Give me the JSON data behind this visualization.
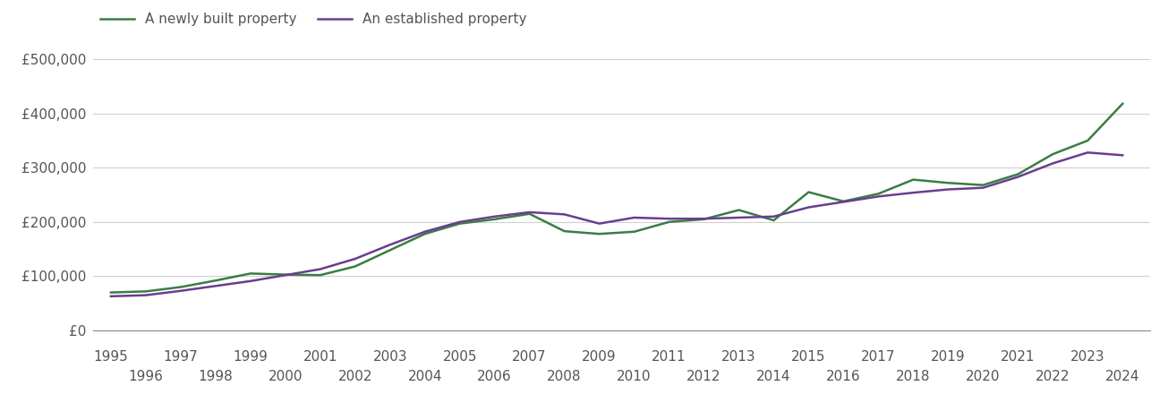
{
  "newly_built": {
    "years": [
      1995,
      1996,
      1997,
      1998,
      1999,
      2000,
      2001,
      2002,
      2003,
      2004,
      2005,
      2006,
      2007,
      2008,
      2009,
      2010,
      2011,
      2012,
      2013,
      2014,
      2015,
      2016,
      2017,
      2018,
      2019,
      2020,
      2021,
      2022,
      2023,
      2024
    ],
    "values": [
      70000,
      72000,
      80000,
      92000,
      105000,
      103000,
      102000,
      118000,
      148000,
      178000,
      197000,
      205000,
      215000,
      183000,
      178000,
      182000,
      200000,
      205000,
      222000,
      203000,
      255000,
      238000,
      252000,
      278000,
      272000,
      268000,
      288000,
      325000,
      350000,
      418000
    ]
  },
  "established": {
    "years": [
      1995,
      1996,
      1997,
      1998,
      1999,
      2000,
      2001,
      2002,
      2003,
      2004,
      2005,
      2006,
      2007,
      2008,
      2009,
      2010,
      2011,
      2012,
      2013,
      2014,
      2015,
      2016,
      2017,
      2018,
      2019,
      2020,
      2021,
      2022,
      2023,
      2024
    ],
    "values": [
      63000,
      65000,
      73000,
      82000,
      91000,
      102000,
      113000,
      132000,
      158000,
      182000,
      200000,
      210000,
      218000,
      214000,
      197000,
      208000,
      206000,
      206000,
      208000,
      210000,
      227000,
      237000,
      247000,
      254000,
      260000,
      263000,
      283000,
      308000,
      328000,
      323000
    ]
  },
  "newly_color": "#3a7d44",
  "established_color": "#6a3d8f",
  "line_width": 1.8,
  "legend_labels": [
    "A newly built property",
    "An established property"
  ],
  "ylim": [
    0,
    520000
  ],
  "yticks": [
    0,
    100000,
    200000,
    300000,
    400000,
    500000
  ],
  "ytick_labels": [
    "£0",
    "£100,000",
    "£200,000",
    "£300,000",
    "£400,000",
    "£500,000"
  ],
  "xticks_top": [
    1995,
    1997,
    1999,
    2001,
    2003,
    2005,
    2007,
    2009,
    2011,
    2013,
    2015,
    2017,
    2019,
    2021,
    2023
  ],
  "xticks_bottom": [
    1996,
    1998,
    2000,
    2002,
    2004,
    2006,
    2008,
    2010,
    2012,
    2014,
    2016,
    2018,
    2020,
    2022,
    2024
  ],
  "grid_color": "#d0d0d0",
  "background_color": "#ffffff",
  "text_color": "#555555",
  "font_size": 11,
  "xlim_left": 1994.5,
  "xlim_right": 2024.8
}
